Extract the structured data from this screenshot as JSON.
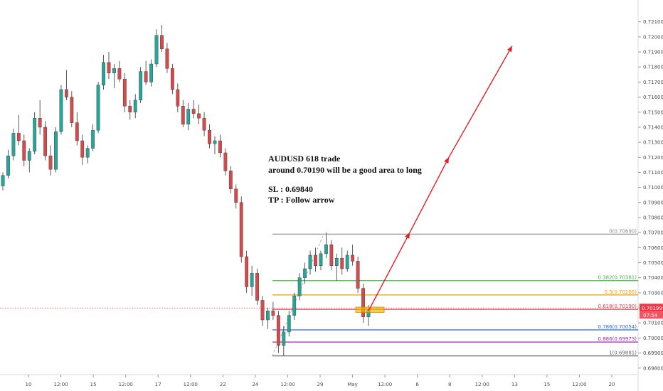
{
  "colors": {
    "up": "#26a69a",
    "down": "#d84a4a",
    "wick": "#333333",
    "zero": "#8a8a8a",
    "fib382": "#4caf50",
    "fib500": "#ff9800",
    "fib618": "#f23645",
    "fib786": "#2962ff",
    "fib886": "#9c27b0",
    "one": "#666666",
    "arrow": "#e31c25",
    "zone": "#f5b700"
  },
  "chart_data": {
    "type": "candlestick",
    "instrument": "AUDUSD",
    "ylim": [
      0.6978,
      0.7216
    ],
    "price_ticks": [
      "0.72100",
      "0.72000",
      "0.71900",
      "0.71800",
      "0.71700",
      "0.71600",
      "0.71500",
      "0.71400",
      "0.71300",
      "0.71200",
      "0.71100",
      "0.71000",
      "0.70900",
      "0.70800",
      "0.70700",
      "0.70600",
      "0.70500",
      "0.70400",
      "0.70300",
      "0.70200",
      "0.70100",
      "0.70000",
      "0.69900",
      "0.69800"
    ],
    "time_ticks": [
      "10",
      "12:00",
      "15",
      "12:00",
      "17",
      "12:00",
      "22",
      "24",
      "12:00",
      "29",
      "May",
      "12:00",
      "6",
      "8",
      "12:00",
      "13",
      "15",
      "12:00",
      "20"
    ],
    "candles": [
      [
        0.7101,
        0.711,
        0.7098,
        0.7108
      ],
      [
        0.7108,
        0.7125,
        0.7106,
        0.7121
      ],
      [
        0.7121,
        0.7139,
        0.7118,
        0.7136
      ],
      [
        0.7136,
        0.7148,
        0.7128,
        0.7131
      ],
      [
        0.7131,
        0.7135,
        0.7114,
        0.7118
      ],
      [
        0.7118,
        0.7126,
        0.711,
        0.7124
      ],
      [
        0.7124,
        0.715,
        0.7122,
        0.7146
      ],
      [
        0.7146,
        0.7158,
        0.7135,
        0.714
      ],
      [
        0.714,
        0.7144,
        0.7118,
        0.7121
      ],
      [
        0.7121,
        0.7128,
        0.7108,
        0.7112
      ],
      [
        0.7112,
        0.714,
        0.711,
        0.7137
      ],
      [
        0.7137,
        0.7168,
        0.7135,
        0.7165
      ],
      [
        0.7165,
        0.7178,
        0.7158,
        0.716
      ],
      [
        0.716,
        0.7164,
        0.714,
        0.7143
      ],
      [
        0.7143,
        0.715,
        0.7128,
        0.7131
      ],
      [
        0.7131,
        0.7135,
        0.7115,
        0.712
      ],
      [
        0.712,
        0.7128,
        0.7116,
        0.7126
      ],
      [
        0.7126,
        0.7142,
        0.7124,
        0.7138
      ],
      [
        0.7138,
        0.717,
        0.7136,
        0.7168
      ],
      [
        0.7168,
        0.7188,
        0.7165,
        0.7183
      ],
      [
        0.7183,
        0.719,
        0.7172,
        0.7176
      ],
      [
        0.7176,
        0.7182,
        0.7166,
        0.7179
      ],
      [
        0.7179,
        0.7184,
        0.717,
        0.7172
      ],
      [
        0.7172,
        0.7176,
        0.715,
        0.7154
      ],
      [
        0.7154,
        0.7158,
        0.7145,
        0.715
      ],
      [
        0.715,
        0.7162,
        0.7146,
        0.7158
      ],
      [
        0.7158,
        0.718,
        0.7156,
        0.7177
      ],
      [
        0.7177,
        0.7184,
        0.7168,
        0.717
      ],
      [
        0.717,
        0.7185,
        0.7167,
        0.7182
      ],
      [
        0.7182,
        0.7205,
        0.718,
        0.7201
      ],
      [
        0.7201,
        0.7208,
        0.719,
        0.7192
      ],
      [
        0.7192,
        0.7196,
        0.7176,
        0.7179
      ],
      [
        0.7179,
        0.7182,
        0.7162,
        0.7165
      ],
      [
        0.7165,
        0.7169,
        0.715,
        0.7154
      ],
      [
        0.7154,
        0.7158,
        0.714,
        0.7142
      ],
      [
        0.7142,
        0.7156,
        0.7138,
        0.7152
      ],
      [
        0.7152,
        0.7158,
        0.7146,
        0.7149
      ],
      [
        0.7149,
        0.7155,
        0.7142,
        0.7146
      ],
      [
        0.7146,
        0.715,
        0.7134,
        0.7138
      ],
      [
        0.7138,
        0.7142,
        0.7126,
        0.7129
      ],
      [
        0.7129,
        0.7134,
        0.7122,
        0.7131
      ],
      [
        0.7131,
        0.7135,
        0.712,
        0.7123
      ],
      [
        0.7123,
        0.7126,
        0.7108,
        0.7111
      ],
      [
        0.7111,
        0.7114,
        0.7096,
        0.7099
      ],
      [
        0.7099,
        0.7102,
        0.7086,
        0.709
      ],
      [
        0.709,
        0.7094,
        0.705,
        0.7054
      ],
      [
        0.7054,
        0.7058,
        0.703,
        0.7034
      ],
      [
        0.7034,
        0.7048,
        0.7028,
        0.7043
      ],
      [
        0.7043,
        0.7046,
        0.7022,
        0.7025
      ],
      [
        0.7025,
        0.7028,
        0.7008,
        0.7012
      ],
      [
        0.7012,
        0.702,
        0.7006,
        0.7018
      ],
      [
        0.7018,
        0.7024,
        0.7012,
        0.7015
      ],
      [
        0.7015,
        0.7018,
        0.699,
        0.6995
      ],
      [
        0.6995,
        0.7008,
        0.6988,
        0.7004
      ],
      [
        0.7004,
        0.7018,
        0.7001,
        0.7015
      ],
      [
        0.7015,
        0.703,
        0.7012,
        0.7028
      ],
      [
        0.7028,
        0.7043,
        0.7025,
        0.704
      ],
      [
        0.704,
        0.705,
        0.7036,
        0.7046
      ],
      [
        0.7046,
        0.7058,
        0.7042,
        0.7055
      ],
      [
        0.7055,
        0.706,
        0.7044,
        0.7048
      ],
      [
        0.7048,
        0.7058,
        0.7045,
        0.7056
      ],
      [
        0.7056,
        0.707,
        0.7053,
        0.7062
      ],
      [
        0.7062,
        0.7065,
        0.7045,
        0.7048
      ],
      [
        0.7048,
        0.7056,
        0.7038,
        0.7053
      ],
      [
        0.7053,
        0.706,
        0.7042,
        0.7046
      ],
      [
        0.7046,
        0.7058,
        0.7044,
        0.7055
      ],
      [
        0.7055,
        0.7062,
        0.7048,
        0.7051
      ],
      [
        0.7051,
        0.7054,
        0.703,
        0.7033
      ],
      [
        0.7033,
        0.7036,
        0.701,
        0.7014
      ],
      [
        0.7014,
        0.7022,
        0.7008,
        0.7019
      ]
    ],
    "fib_levels": [
      {
        "label": "0(0.70690)",
        "price": 0.7069,
        "color_key": "zero"
      },
      {
        "label": "0.382(0.70381)",
        "price": 0.70381,
        "color_key": "fib382"
      },
      {
        "label": "0.5(0.70286)",
        "price": 0.70286,
        "color_key": "fib500"
      },
      {
        "label": "0.618(0.70190)",
        "price": 0.7019,
        "color_key": "fib618"
      },
      {
        "label": "0.786(0.70054)",
        "price": 0.70054,
        "color_key": "fib786"
      },
      {
        "label": "0.886(0.69973)",
        "price": 0.69973,
        "color_key": "fib886"
      },
      {
        "label": "1(0.69881)",
        "price": 0.69881,
        "color_key": "one"
      }
    ],
    "current_price": "0.70199",
    "countdown": "07:54",
    "arrow_points": [
      [
        0.7018,
        0.7018
      ],
      [
        0.707,
        0.707
      ],
      [
        0.712,
        0.712
      ],
      [
        0.7194,
        0.7194
      ]
    ],
    "annotations": {
      "line1": "AUDUSD 618 trade",
      "line2": "around 0.70190 will be a good area to long",
      "line3": "SL : 0.69840",
      "line4": "TP : Follow arrow"
    }
  }
}
